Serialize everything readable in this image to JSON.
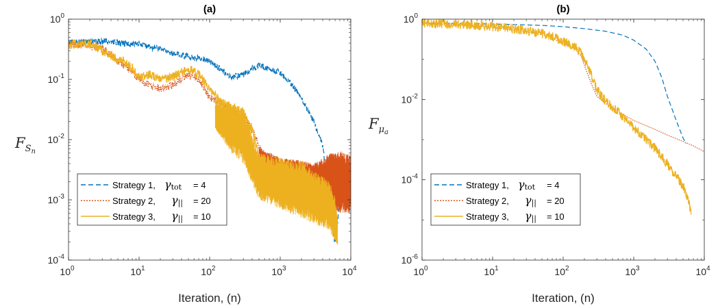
{
  "chart_data": [
    {
      "type": "line",
      "title": "(a)",
      "xlabel": "Iteration, (n)",
      "ylabel": {
        "symbol": "F",
        "sub": "S",
        "subsub": "n"
      },
      "xscale": "log",
      "yscale": "log",
      "xlim": [
        1,
        10000
      ],
      "ylim": [
        0.0001,
        1
      ],
      "x_ticks": {
        "base": "10",
        "exponents": [
          "0",
          "1",
          "2",
          "3",
          "4"
        ]
      },
      "y_ticks": {
        "base": "10",
        "exponents": [
          "-4",
          "-3",
          "-2",
          "-1",
          "0"
        ]
      },
      "grid": false,
      "legend_position": "bottom-left",
      "legend": [
        {
          "text": "Strategy 1,",
          "symbol": "γ",
          "symbol_sub": "tot",
          "value": " = 4"
        },
        {
          "text": "Strategy 2,",
          "symbol": "γ",
          "symbol_sub": "||",
          "value": " = 20"
        },
        {
          "text": "Strategy 3,",
          "symbol": "γ",
          "symbol_sub": "||",
          "value": " = 10"
        }
      ],
      "series": [
        {
          "style": "dashed",
          "color": "#0072BD",
          "noise": 0.05,
          "points": [
            [
              1,
              0.42
            ],
            [
              2,
              0.42
            ],
            [
              4,
              0.43
            ],
            [
              7,
              0.38
            ],
            [
              10,
              0.4
            ],
            [
              15,
              0.33
            ],
            [
              20,
              0.33
            ],
            [
              30,
              0.27
            ],
            [
              50,
              0.24
            ],
            [
              80,
              0.22
            ],
            [
              100,
              0.2
            ],
            [
              150,
              0.14
            ],
            [
              200,
              0.11
            ],
            [
              300,
              0.12
            ],
            [
              400,
              0.15
            ],
            [
              500,
              0.17
            ],
            [
              700,
              0.15
            ],
            [
              1000,
              0.13
            ],
            [
              1500,
              0.08
            ],
            [
              2000,
              0.05
            ],
            [
              3000,
              0.02
            ],
            [
              4000,
              0.008
            ],
            [
              5000,
              0.001
            ],
            [
              5500,
              0.0003
            ],
            [
              6000,
              0.0002
            ],
            [
              6500,
              0.0004
            ],
            [
              7000,
              0.0015
            ]
          ],
          "band": []
        },
        {
          "style": "dotted",
          "color": "#D95319",
          "noise": 0.06,
          "points": [
            [
              1,
              0.4
            ],
            [
              2,
              0.36
            ],
            [
              3,
              0.34
            ],
            [
              5,
              0.2
            ],
            [
              7,
              0.15
            ],
            [
              10,
              0.1
            ],
            [
              15,
              0.08
            ],
            [
              20,
              0.07
            ],
            [
              30,
              0.08
            ],
            [
              50,
              0.12
            ],
            [
              70,
              0.1
            ],
            [
              100,
              0.05
            ],
            [
              150,
              0.04
            ],
            [
              200,
              0.03
            ],
            [
              300,
              0.025
            ],
            [
              400,
              0.015
            ],
            [
              500,
              0.008
            ],
            [
              700,
              0.003
            ],
            [
              1000,
              0.0022
            ],
            [
              2000,
              0.002
            ],
            [
              3000,
              0.0018
            ],
            [
              5000,
              0.0015
            ],
            [
              7000,
              0.0015
            ],
            [
              10000,
              0.0015
            ]
          ],
          "band": [
            [
              500,
              0.0025,
              0.0075
            ],
            [
              1000,
              0.0015,
              0.005
            ],
            [
              2000,
              0.0013,
              0.0045
            ],
            [
              3000,
              0.0012,
              0.004
            ],
            [
              5000,
              0.0008,
              0.006
            ],
            [
              7000,
              0.0006,
              0.0065
            ],
            [
              10000,
              0.0006,
              0.006
            ]
          ]
        },
        {
          "style": "solid",
          "color": "#EDB120",
          "noise": 0.08,
          "points": [
            [
              1,
              0.38
            ],
            [
              2,
              0.4
            ],
            [
              3,
              0.3
            ],
            [
              5,
              0.22
            ],
            [
              7,
              0.18
            ],
            [
              10,
              0.11
            ],
            [
              15,
              0.12
            ],
            [
              20,
              0.1
            ],
            [
              30,
              0.11
            ],
            [
              50,
              0.15
            ],
            [
              70,
              0.12
            ],
            [
              100,
              0.07
            ],
            [
              150,
              0.04
            ],
            [
              200,
              0.035
            ],
            [
              300,
              0.03
            ],
            [
              400,
              0.015
            ],
            [
              500,
              0.005
            ],
            [
              700,
              0.002
            ],
            [
              1000,
              0.0015
            ],
            [
              2000,
              0.0012
            ],
            [
              3000,
              0.001
            ],
            [
              4000,
              0.0008
            ],
            [
              5000,
              0.0006
            ],
            [
              6000,
              0.0003
            ],
            [
              6500,
              0.0002
            ]
          ],
          "band": [
            [
              120,
              0.015,
              0.045
            ],
            [
              200,
              0.006,
              0.04
            ],
            [
              300,
              0.004,
              0.035
            ],
            [
              500,
              0.001,
              0.006
            ],
            [
              1000,
              0.0007,
              0.005
            ],
            [
              2000,
              0.0005,
              0.0045
            ],
            [
              3000,
              0.0004,
              0.003
            ],
            [
              4000,
              0.00035,
              0.0025
            ],
            [
              5000,
              0.0003,
              0.002
            ],
            [
              6000,
              0.0002,
              0.0012
            ],
            [
              6500,
              0.00018,
              0.0005
            ]
          ]
        }
      ]
    },
    {
      "type": "line",
      "title": "(b)",
      "xlabel": "Iteration, (n)",
      "ylabel": {
        "symbol": "F",
        "sub": "μ",
        "subsub": "a"
      },
      "xscale": "log",
      "yscale": "log",
      "xlim": [
        1,
        10000
      ],
      "ylim": [
        1e-06,
        1
      ],
      "x_ticks": {
        "base": "10",
        "exponents": [
          "0",
          "1",
          "2",
          "3",
          "4"
        ]
      },
      "y_ticks": {
        "base": "10",
        "exponents": [
          "-6",
          "-4",
          "-2",
          "0"
        ]
      },
      "grid": false,
      "legend_position": "bottom-left",
      "legend": [
        {
          "text": "Strategy 1,",
          "symbol": "γ",
          "symbol_sub": "tot",
          "value": " = 4"
        },
        {
          "text": "Strategy 2,",
          "symbol": "γ",
          "symbol_sub": "||",
          "value": " = 20"
        },
        {
          "text": "Strategy 3,",
          "symbol": "γ",
          "symbol_sub": "||",
          "value": " = 10"
        }
      ],
      "series": [
        {
          "style": "dashed",
          "color": "#0072BD",
          "noise": 0,
          "points": [
            [
              1,
              0.8
            ],
            [
              10,
              0.76
            ],
            [
              50,
              0.7
            ],
            [
              100,
              0.65
            ],
            [
              200,
              0.58
            ],
            [
              400,
              0.5
            ],
            [
              700,
              0.4
            ],
            [
              1000,
              0.3
            ],
            [
              1500,
              0.18
            ],
            [
              2000,
              0.09
            ],
            [
              2500,
              0.035
            ],
            [
              3000,
              0.012
            ],
            [
              4000,
              0.003
            ],
            [
              5000,
              0.0011
            ],
            [
              5500,
              0.0008
            ]
          ],
          "band": []
        },
        {
          "style": "dotted",
          "color": "#D95319",
          "noise": 0,
          "points": [
            [
              1,
              0.78
            ],
            [
              5,
              0.7
            ],
            [
              10,
              0.62
            ],
            [
              20,
              0.55
            ],
            [
              40,
              0.45
            ],
            [
              60,
              0.38
            ],
            [
              100,
              0.25
            ],
            [
              150,
              0.18
            ],
            [
              180,
              0.12
            ],
            [
              200,
              0.07
            ],
            [
              250,
              0.025
            ],
            [
              300,
              0.012
            ],
            [
              400,
              0.008
            ],
            [
              600,
              0.005
            ],
            [
              1000,
              0.003
            ],
            [
              2000,
              0.0018
            ],
            [
              3000,
              0.0013
            ],
            [
              5000,
              0.0009
            ],
            [
              7000,
              0.0007
            ],
            [
              10000,
              0.0005
            ]
          ],
          "band": []
        },
        {
          "style": "solid",
          "color": "#EDB120",
          "noise": 0.12,
          "points": [
            [
              1,
              0.8
            ],
            [
              5,
              0.72
            ],
            [
              10,
              0.65
            ],
            [
              20,
              0.58
            ],
            [
              40,
              0.48
            ],
            [
              60,
              0.4
            ],
            [
              100,
              0.28
            ],
            [
              150,
              0.2
            ],
            [
              180,
              0.14
            ],
            [
              200,
              0.1
            ],
            [
              250,
              0.04
            ],
            [
              300,
              0.018
            ],
            [
              400,
              0.009
            ],
            [
              600,
              0.005
            ],
            [
              1000,
              0.002
            ],
            [
              2000,
              0.0006
            ],
            [
              3000,
              0.00025
            ],
            [
              4000,
              0.00012
            ],
            [
              5000,
              7e-05
            ],
            [
              6000,
              3e-05
            ],
            [
              6500,
              1.5e-05
            ]
          ],
          "band": []
        }
      ]
    }
  ]
}
